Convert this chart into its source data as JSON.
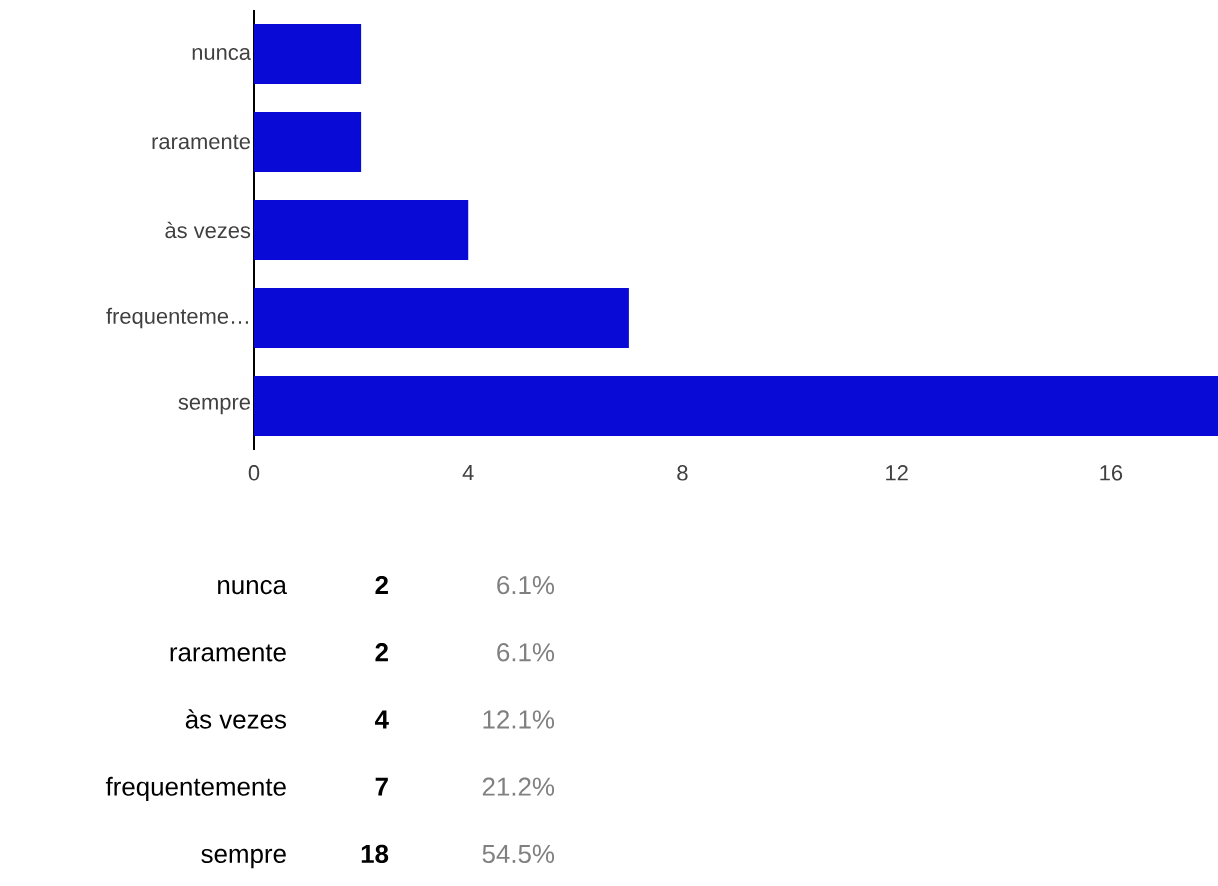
{
  "chart_data": {
    "type": "bar",
    "orientation": "horizontal",
    "categories": [
      "nunca",
      "raramente",
      "às vezes",
      "frequenteme…",
      "sempre"
    ],
    "values": [
      2,
      2,
      4,
      7,
      18
    ],
    "color": "#0a0ad6",
    "xlim": [
      0,
      18
    ],
    "xticks": [
      0,
      4,
      8,
      12,
      16
    ],
    "annotations": [
      "nunca",
      "2",
      "6.1%",
      "raramente",
      "2",
      "6.1%",
      "às vezes",
      "4",
      "12.1%",
      "frequentemente",
      "7",
      "21.2%",
      "sempre",
      "18",
      "54.5%"
    ]
  }
}
